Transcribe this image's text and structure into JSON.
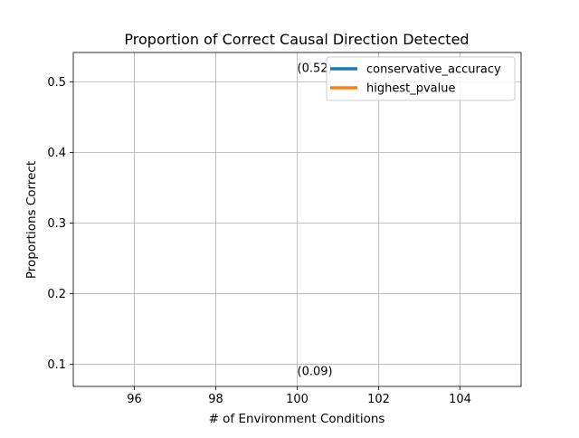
{
  "chart_data": {
    "type": "line",
    "title": "Proportion of Correct Causal Direction Detected",
    "xlabel": "# of Environment Conditions",
    "ylabel": "Proportions Correct",
    "xlim": [
      94.5,
      105.5
    ],
    "ylim": [
      0.0685,
      0.5415
    ],
    "xticks": [
      96,
      98,
      100,
      102,
      104
    ],
    "xtick_labels": [
      "96",
      "98",
      "100",
      "102",
      "104"
    ],
    "yticks": [
      0.1,
      0.2,
      0.3,
      0.4,
      0.5
    ],
    "ytick_labels": [
      "0.1",
      "0.2",
      "0.3",
      "0.4",
      "0.5"
    ],
    "grid": true,
    "legend_position": "top-right",
    "series": [
      {
        "name": "conservative_accuracy",
        "color": "#1f77b4",
        "x": [
          100
        ],
        "y": [
          0.52
        ]
      },
      {
        "name": "highest_pvalue",
        "color": "#ff7f0e",
        "x": [
          100
        ],
        "y": [
          0.09
        ]
      }
    ],
    "annotations": [
      {
        "text": "(0.52)",
        "x": 100,
        "y": 0.52
      },
      {
        "text": "(0.09)",
        "x": 100,
        "y": 0.09
      }
    ]
  }
}
